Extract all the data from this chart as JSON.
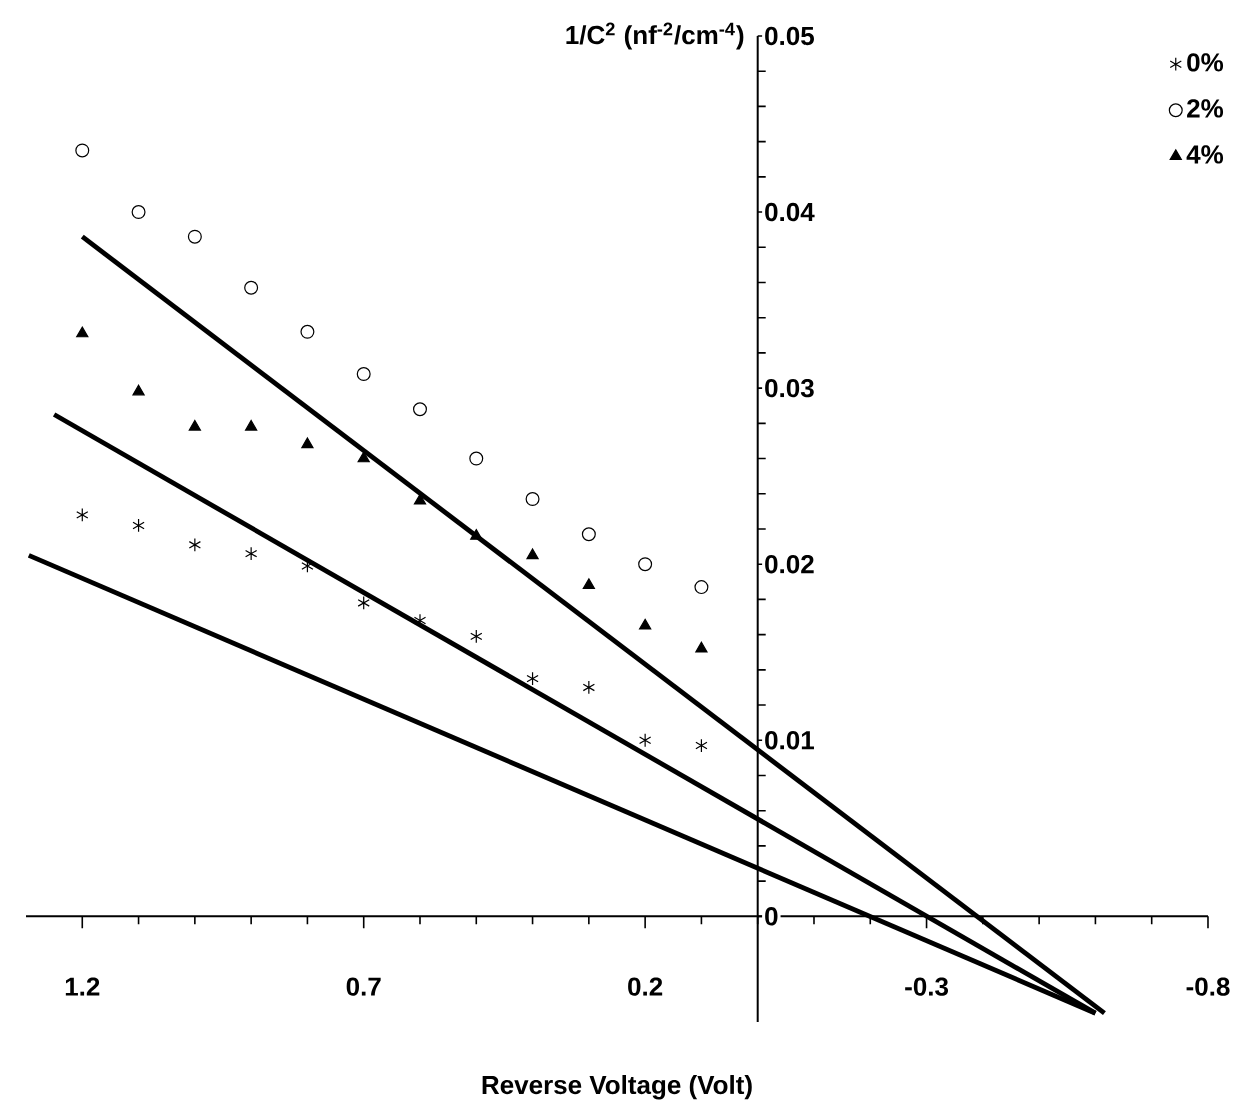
{
  "chart_data": {
    "type": "scatter",
    "xlabel": "Reverse Voltage (Volt)",
    "ylabel": "1/C$^{2}$ (nf$^{-2}$/cm$^{-4}$)",
    "x": [
      1.2,
      1.1,
      1.0,
      0.9,
      0.8,
      0.7,
      0.6,
      0.5,
      0.4,
      0.3,
      0.2,
      0.1
    ],
    "series": [
      {
        "name": "0%",
        "color": "#000000",
        "marker": "cross",
        "values": [
          0.0228,
          0.0222,
          0.0211,
          0.0206,
          0.0199,
          0.0178,
          0.0168,
          0.0159,
          0.0135,
          0.013,
          0.01,
          0.0097
        ]
      },
      {
        "name": "2%",
        "color": "#000000",
        "marker": "circle",
        "values": [
          0.0435,
          0.04,
          0.0386,
          0.0357,
          0.0332,
          0.0308,
          0.0288,
          0.026,
          0.0237,
          0.0217,
          0.02,
          0.0187
        ]
      },
      {
        "name": "4%",
        "color": "#000000",
        "marker": "triangle",
        "values": [
          0.0331,
          0.0298,
          0.0278,
          0.0278,
          0.0268,
          0.026,
          0.0236,
          0.0216,
          0.0205,
          0.0188,
          0.0165,
          0.0152
        ]
      },
      {
        "type": "line",
        "color": "#000000",
        "x": [
          1.2,
          -0.616
        ],
        "values": [
          0.0386,
          -0.0055
        ]
      },
      {
        "type": "line",
        "color": "#000000",
        "x": [
          1.25,
          -0.6
        ],
        "values": [
          0.0285,
          -0.0055
        ]
      },
      {
        "type": "line",
        "color": "#000000",
        "x": [
          1.295,
          -0.6
        ],
        "values": [
          0.0205,
          -0.0055
        ]
      }
    ],
    "xlim": [
      1.3,
      -0.8
    ],
    "xticks": [
      1.2,
      0.7,
      0.2,
      -0.3,
      -0.8
    ],
    "ylim": [
      -0.006,
      0.05
    ],
    "yticks": [
      0,
      0.01,
      0.02,
      0.03,
      0.04,
      0.05
    ],
    "legend": "top right",
    "grid": false
  }
}
